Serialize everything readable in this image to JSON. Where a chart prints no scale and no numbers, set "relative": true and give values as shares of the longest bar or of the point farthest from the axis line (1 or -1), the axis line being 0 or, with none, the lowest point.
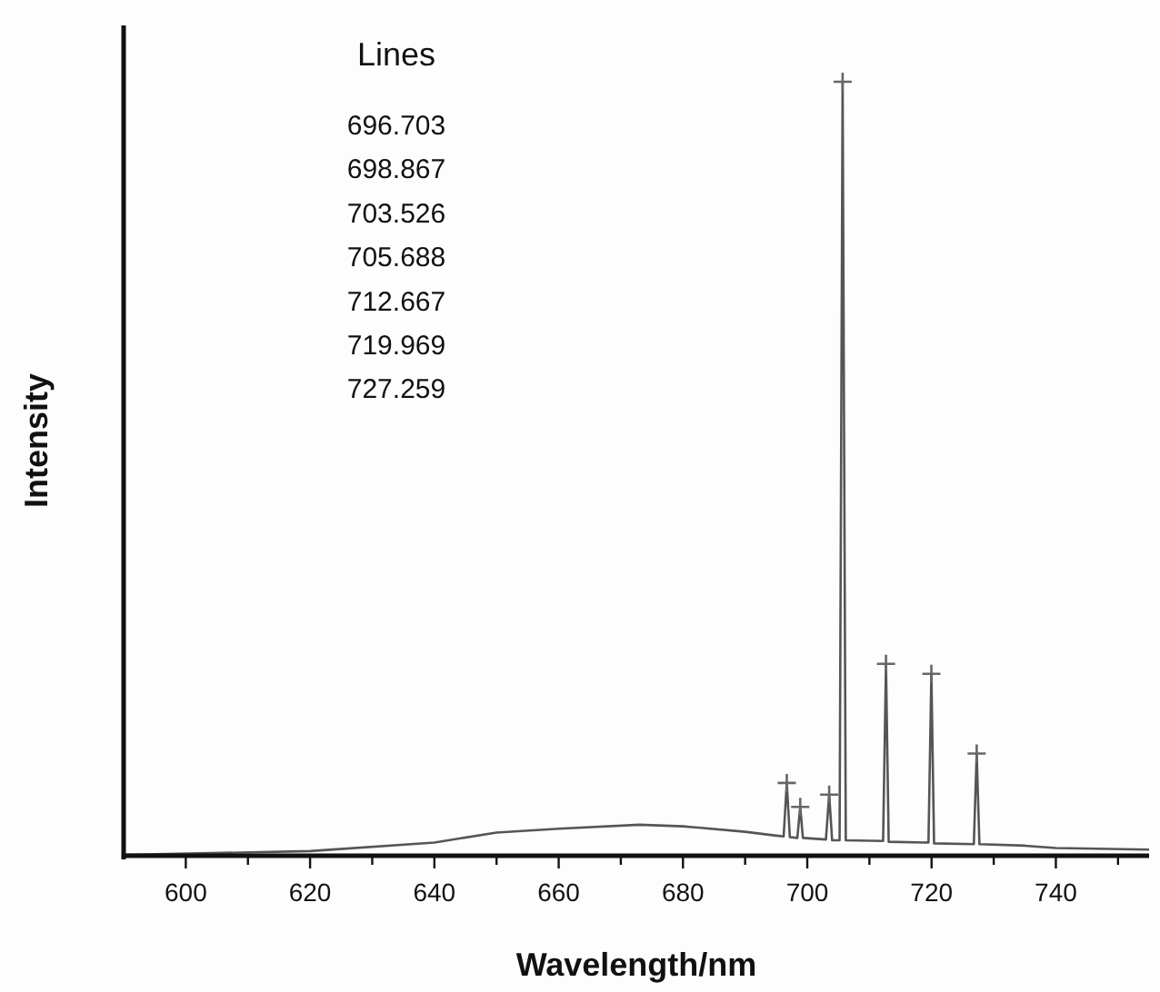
{
  "chart_data": {
    "type": "line",
    "relative": true,
    "xlabel": "Wavelength/nm",
    "ylabel": "Intensity",
    "xlim": [
      590,
      755
    ],
    "xticks": [
      600,
      {
        "value": 610,
        "label": null
      },
      620,
      {
        "value": 630,
        "label": null
      },
      640,
      {
        "value": 650,
        "label": null
      },
      660,
      {
        "value": 670,
        "label": null
      },
      680,
      {
        "value": 690,
        "label": null
      },
      700,
      {
        "value": 710,
        "label": null
      },
      720,
      {
        "value": 730,
        "label": null
      },
      740,
      {
        "value": 750,
        "label": null
      }
    ],
    "grid": false,
    "annotations": [
      "Lines",
      "696.703",
      "698.867",
      "703.526",
      "705.688",
      "712.667",
      "719.969",
      "727.259"
    ],
    "series": [
      {
        "color": "#555555",
        "marker": "none",
        "line_style": "solid",
        "x": [
          590,
          620,
          640,
          650,
          660,
          673,
          680,
          690,
          695,
          696.2,
          696.703,
          697.2,
          698.4,
          698.867,
          699.3,
          703.0,
          703.526,
          704.0,
          705.2,
          705.688,
          706.2,
          712.2,
          712.667,
          713.1,
          719.5,
          719.969,
          720.4,
          726.8,
          727.259,
          727.7,
          735,
          740,
          755
        ],
        "values": [
          0.001,
          0.006,
          0.017,
          0.03,
          0.035,
          0.04,
          0.038,
          0.031,
          0.026,
          0.025,
          0.094,
          0.024,
          0.023,
          0.063,
          0.023,
          0.021,
          0.079,
          0.02,
          0.02,
          1,
          0.02,
          0.019,
          0.248,
          0.018,
          0.017,
          0.235,
          0.016,
          0.015,
          0.132,
          0.015,
          0.013,
          0.01,
          0.008
        ]
      },
      {
        "type": "scatter",
        "color": "#666666",
        "marker": "cross",
        "x": [
          696.703,
          698.867,
          703.526,
          705.688,
          712.667,
          719.969,
          727.259
        ],
        "values": [
          0.094,
          0.063,
          0.079,
          1,
          0.248,
          0.235,
          0.132
        ]
      }
    ]
  }
}
